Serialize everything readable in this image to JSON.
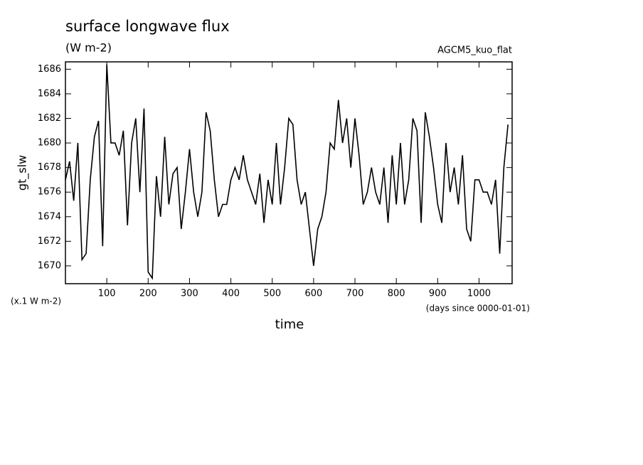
{
  "chart_data": {
    "type": "line",
    "title": "surface longwave flux",
    "subtitle": "(W m-2)",
    "annotation": "AGCM5_kuo_flat",
    "y_label": "gt_slw",
    "y_unit_label": "(x.1 W m-2)",
    "x_unit_label": "(days since 0000-01-01)",
    "x_label": "time",
    "xlim": [
      0,
      1080
    ],
    "ylim": [
      1668.55,
      1686.6
    ],
    "xticks": [
      100,
      200,
      300,
      400,
      500,
      600,
      700,
      800,
      900,
      1000
    ],
    "yticks": [
      1670,
      1672,
      1674,
      1676,
      1678,
      1680,
      1682,
      1684,
      1686
    ],
    "x": [
      0,
      10,
      20,
      30,
      40,
      50,
      60,
      70,
      80,
      90,
      100,
      110,
      120,
      130,
      140,
      150,
      160,
      170,
      180,
      190,
      200,
      210,
      220,
      230,
      240,
      250,
      260,
      270,
      280,
      290,
      300,
      310,
      320,
      330,
      340,
      350,
      360,
      370,
      380,
      390,
      400,
      410,
      420,
      430,
      440,
      450,
      460,
      470,
      480,
      490,
      500,
      510,
      520,
      530,
      540,
      550,
      560,
      570,
      580,
      590,
      600,
      610,
      620,
      630,
      640,
      650,
      660,
      670,
      680,
      690,
      700,
      710,
      720,
      730,
      740,
      750,
      760,
      770,
      780,
      790,
      800,
      810,
      820,
      830,
      840,
      850,
      860,
      870,
      880,
      890,
      900,
      910,
      920,
      930,
      940,
      950,
      960,
      970,
      980,
      990,
      1000,
      1010,
      1020,
      1030,
      1040,
      1050,
      1060,
      1070
    ],
    "series": [
      {
        "name": "gt_slw",
        "color": "#000000",
        "values": [
          1677,
          1678.5,
          1675.3,
          1680,
          1670.5,
          1671,
          1677,
          1680.5,
          1681.8,
          1671.6,
          1686.4,
          1680,
          1680,
          1679,
          1681,
          1673.3,
          1680,
          1682,
          1676,
          1682.8,
          1669.5,
          1669,
          1677.3,
          1674,
          1680.5,
          1675,
          1677.5,
          1678,
          1673,
          1676,
          1679.5,
          1676,
          1674,
          1676,
          1682.5,
          1681,
          1677,
          1674,
          1675,
          1675,
          1677,
          1678,
          1677,
          1679,
          1677,
          1676,
          1675,
          1677.5,
          1673.5,
          1677,
          1675,
          1680,
          1675,
          1678,
          1682,
          1681.5,
          1677,
          1675,
          1676,
          1673,
          1670,
          1673,
          1674,
          1676,
          1680,
          1679.5,
          1683.5,
          1680,
          1682,
          1678,
          1682,
          1679,
          1675,
          1676,
          1678,
          1676,
          1675,
          1678,
          1673.5,
          1679,
          1675,
          1680,
          1675,
          1677,
          1682,
          1681,
          1673.5,
          1682.5,
          1680.5,
          1678,
          1675,
          1673.5,
          1680,
          1676,
          1678,
          1675,
          1679,
          1673,
          1672,
          1677,
          1677,
          1676,
          1676,
          1675,
          1677,
          1671,
          1678,
          1681.5
        ]
      }
    ]
  }
}
